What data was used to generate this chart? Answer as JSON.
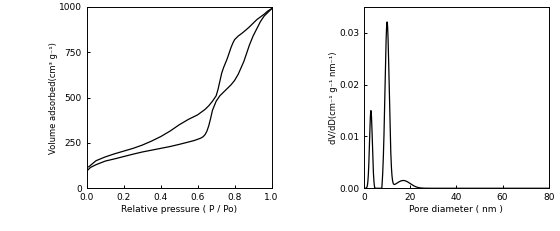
{
  "left_xlabel": "Relative pressure ( P / Po)",
  "left_ylabel": "Volume adsorbed(cm³ g⁻¹)",
  "left_xlim": [
    0.0,
    1.0
  ],
  "left_ylim": [
    0,
    1000
  ],
  "left_yticks": [
    0,
    250,
    500,
    750,
    1000
  ],
  "left_xticks": [
    0.0,
    0.2,
    0.4,
    0.6,
    0.8,
    1.0
  ],
  "right_xlabel": "Pore diameter ( nm )",
  "right_ylabel": "dV/dD(cm⁻¹ g⁻¹ nm⁻¹)",
  "right_xlim": [
    0,
    80
  ],
  "right_ylim": [
    0,
    0.035
  ],
  "right_yticks": [
    0.0,
    0.01,
    0.02,
    0.03
  ],
  "right_xticks": [
    0,
    20,
    40,
    60,
    80
  ],
  "line_color": "#000000",
  "bg_color": "#ffffff"
}
